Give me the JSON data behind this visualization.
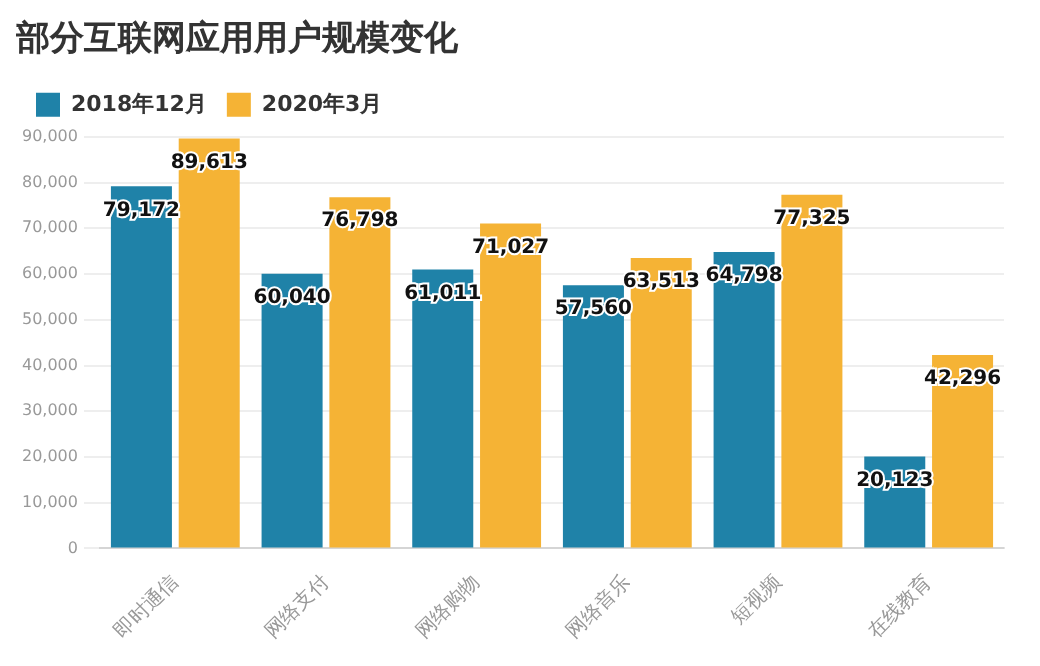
{
  "chart_data": {
    "type": "bar",
    "title": "部分互联网应用用户规模变化",
    "categories": [
      "即时通信",
      "网络支付",
      "网络购物",
      "网络音乐",
      "短视频",
      "在线教育"
    ],
    "series": [
      {
        "name": "2018年12月",
        "color": "#1f82a8",
        "values": [
          79172,
          60040,
          61011,
          57560,
          64798,
          20123
        ],
        "value_labels": [
          "79,172",
          "60,040",
          "61,011",
          "57,560",
          "64,798",
          "20,123"
        ]
      },
      {
        "name": "2020年3月",
        "color": "#f5b335",
        "values": [
          89613,
          76798,
          71027,
          63513,
          77325,
          42296
        ],
        "value_labels": [
          "89,613",
          "76,798",
          "71,027",
          "63,513",
          "77,325",
          "42,296"
        ]
      }
    ],
    "ylim": [
      0,
      90000
    ],
    "yticks": [
      {
        "value": 0,
        "label": "0"
      },
      {
        "value": 10000,
        "label": "10,000"
      },
      {
        "value": 20000,
        "label": "20,000"
      },
      {
        "value": 30000,
        "label": "30,000"
      },
      {
        "value": 40000,
        "label": "40,000"
      },
      {
        "value": 50000,
        "label": "50,000"
      },
      {
        "value": 60000,
        "label": "60,000"
      },
      {
        "value": 70000,
        "label": "70,000"
      },
      {
        "value": 80000,
        "label": "80,000"
      },
      {
        "value": 90000,
        "label": "90,000"
      }
    ],
    "grid": "y",
    "legend": "top left"
  }
}
